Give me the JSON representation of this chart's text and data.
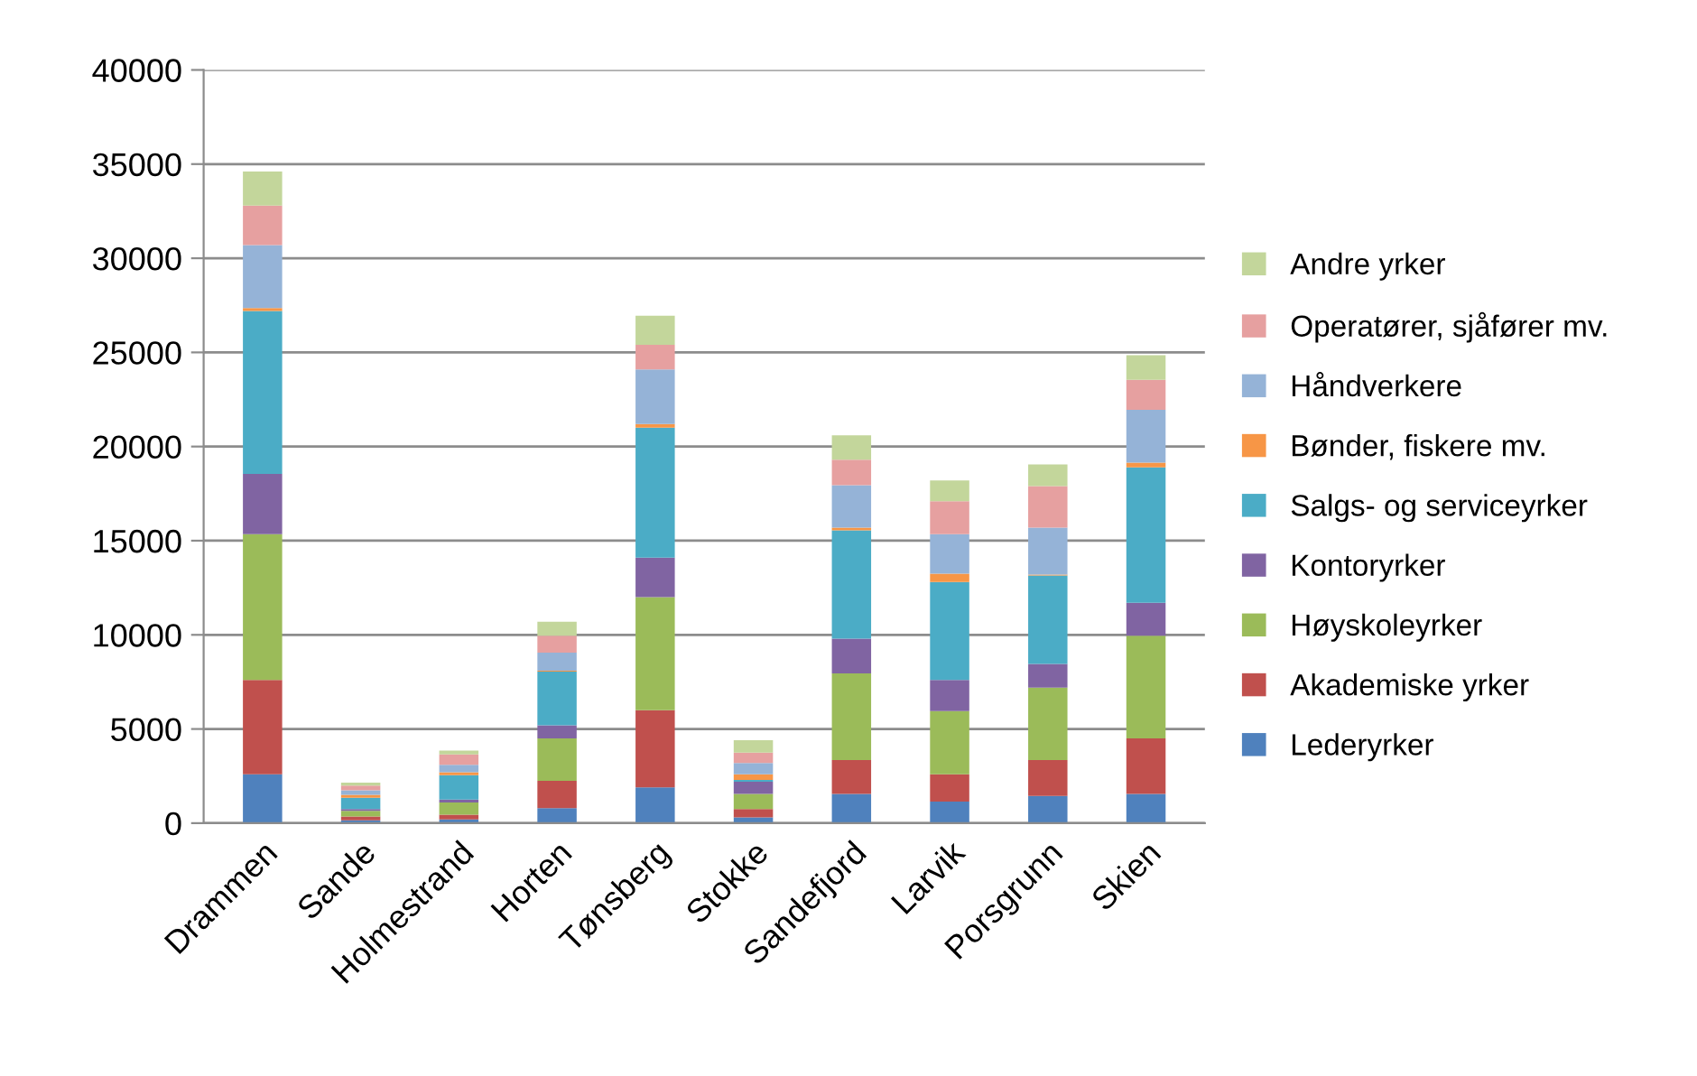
{
  "chart_data": {
    "type": "bar",
    "stacked": true,
    "categories": [
      "Drammen",
      "Sande",
      "Holmestrand",
      "Horten",
      "Tønsberg",
      "Stokke",
      "Sandefjord",
      "Larvik",
      "Porsgrunn",
      "Skien"
    ],
    "series": [
      {
        "name": "Lederyrker",
        "color": "#4f81bd",
        "values": [
          2600,
          150,
          200,
          800,
          1900,
          300,
          1550,
          1150,
          1450,
          1550
        ]
      },
      {
        "name": "Akademiske yrker",
        "color": "#c0504d",
        "values": [
          5000,
          200,
          250,
          1450,
          4100,
          450,
          1800,
          1450,
          1900,
          2950
        ]
      },
      {
        "name": "Høyskoleyrker",
        "color": "#9bbb59",
        "values": [
          7750,
          300,
          650,
          2250,
          6000,
          800,
          4600,
          3350,
          3850,
          5450
        ]
      },
      {
        "name": "Kontoryrker",
        "color": "#8064a2",
        "values": [
          3200,
          100,
          150,
          700,
          2100,
          650,
          1850,
          1650,
          1250,
          1750
        ]
      },
      {
        "name": "Salgs- og serviceyrker",
        "color": "#4bacc6",
        "values": [
          8650,
          600,
          1300,
          2850,
          6900,
          100,
          5750,
          5200,
          4700,
          7200
        ]
      },
      {
        "name": "Bønder, fiskere mv.",
        "color": "#f79646",
        "values": [
          150,
          150,
          150,
          50,
          200,
          300,
          150,
          450,
          50,
          250
        ]
      },
      {
        "name": "Håndverkere",
        "color": "#95b3d7",
        "values": [
          3350,
          250,
          400,
          950,
          2900,
          600,
          2250,
          2100,
          2500,
          2800
        ]
      },
      {
        "name": "Operatører, sjåfører mv.",
        "color": "#e6a0a0",
        "values": [
          2100,
          250,
          550,
          900,
          1300,
          550,
          1350,
          1750,
          2200,
          1600
        ]
      },
      {
        "name": "Andre yrker",
        "color": "#c3d69b",
        "values": [
          1800,
          150,
          200,
          750,
          1550,
          650,
          1300,
          1100,
          1150,
          1300
        ]
      }
    ],
    "ylim": [
      0,
      40000
    ],
    "yticks": [
      0,
      5000,
      10000,
      15000,
      20000,
      25000,
      30000,
      35000,
      40000
    ],
    "grid": "y",
    "legend": "right"
  }
}
